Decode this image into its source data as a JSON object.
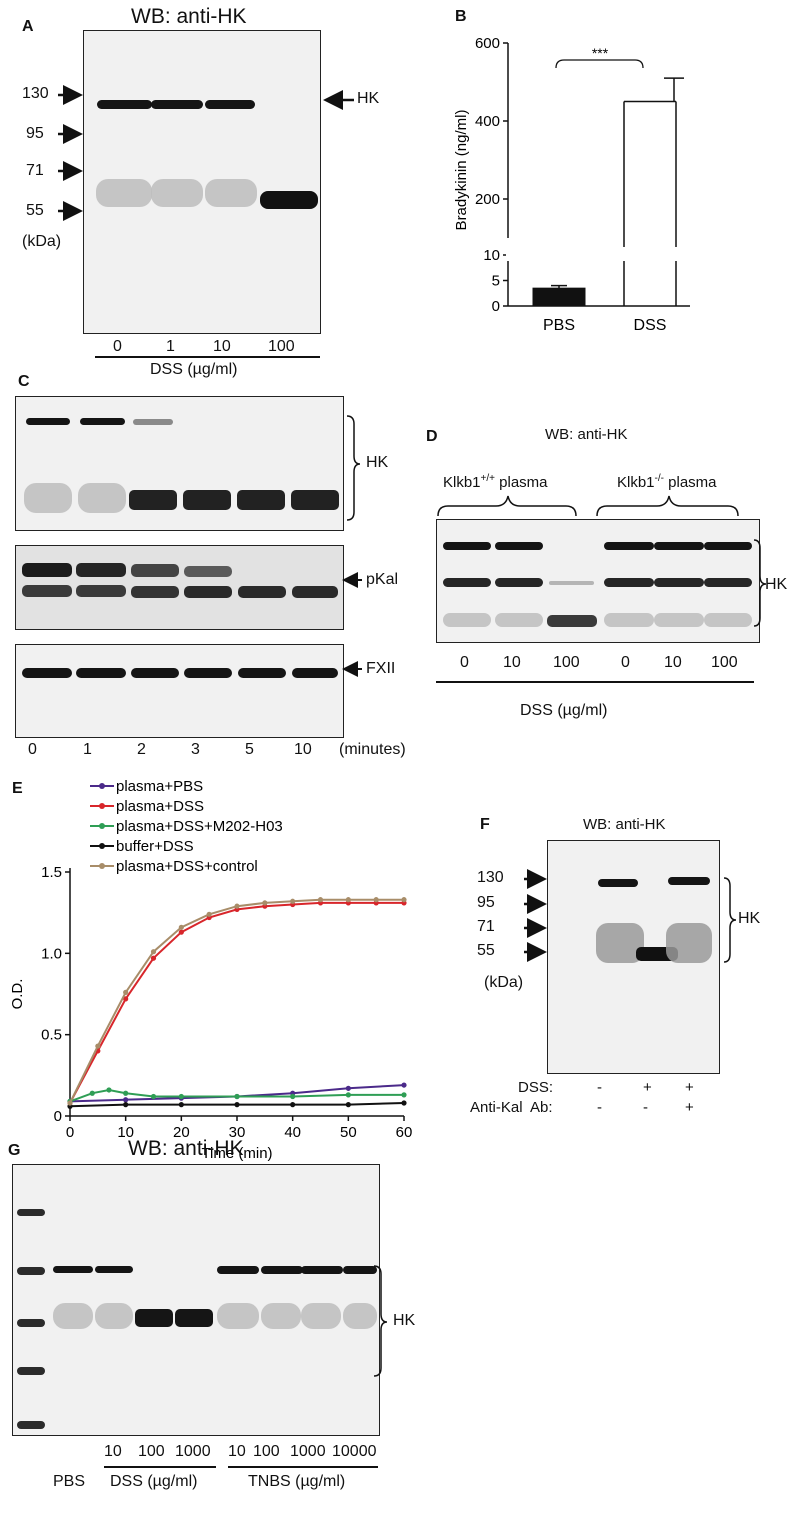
{
  "panelA": {
    "label": "A",
    "title": "WB: anti-HK",
    "markers": [
      "130",
      "95",
      "71",
      "55"
    ],
    "unit": "(kDa)",
    "hk_label": "HK",
    "lanes": [
      "0",
      "1",
      "10",
      "100"
    ],
    "xlabel": "DSS (µg/ml)"
  },
  "panelB": {
    "label": "B",
    "significance": "***",
    "chart_data": {
      "type": "bar",
      "categories": [
        "PBS",
        "DSS"
      ],
      "values": [
        3.5,
        450
      ],
      "errors": [
        0.5,
        60
      ],
      "ylabel": "Bradykinin (ng/ml)",
      "yticks": [
        "0",
        "5",
        "10",
        "200",
        "400",
        "600"
      ],
      "broken_axis": true,
      "colors": [
        "#111111",
        "#ffffff"
      ]
    }
  },
  "panelC": {
    "label": "C",
    "bands": [
      "HK",
      "pKal",
      "FXII"
    ],
    "lanes": [
      "0",
      "1",
      "2",
      "3",
      "5",
      "10"
    ],
    "xunit": "(minutes)"
  },
  "panelD": {
    "label": "D",
    "title": "WB: anti-HK",
    "group1_base": "Klkb1",
    "group1_sup": "+/+",
    "group1_rest": " plasma",
    "group2_base": "Klkb1",
    "group2_sup": "-/-",
    "group2_rest": " plasma",
    "hk_label": "HK",
    "lanes": [
      "0",
      "10",
      "100",
      "0",
      "10",
      "100"
    ],
    "xlabel": "DSS (µg/ml)"
  },
  "panelE": {
    "label": "E",
    "chart_data": {
      "type": "line",
      "xlabel": "Time (min)",
      "ylabel": "O.D.",
      "xticks": [
        "0",
        "10",
        "20",
        "30",
        "40",
        "50",
        "60"
      ],
      "yticks": [
        "0",
        "0.5",
        "1.0",
        "1.5"
      ],
      "xlim": [
        0,
        60
      ],
      "ylim": [
        0,
        1.5
      ],
      "series": [
        {
          "name": "plasma+PBS",
          "color": "#4b2a8a",
          "x": [
            0,
            10,
            20,
            30,
            40,
            50,
            60
          ],
          "values": [
            0.09,
            0.1,
            0.11,
            0.12,
            0.14,
            0.17,
            0.19
          ]
        },
        {
          "name": "plasma+DSS",
          "color": "#d8262b",
          "x": [
            0,
            5,
            10,
            15,
            20,
            25,
            30,
            35,
            40,
            45,
            50,
            55,
            60
          ],
          "values": [
            0.08,
            0.4,
            0.72,
            0.97,
            1.13,
            1.22,
            1.27,
            1.29,
            1.3,
            1.31,
            1.31,
            1.31,
            1.31
          ]
        },
        {
          "name": "plasma+DSS+M202-H03",
          "color": "#2f9e55",
          "x": [
            0,
            4,
            7,
            10,
            15,
            20,
            30,
            40,
            50,
            60
          ],
          "values": [
            0.09,
            0.14,
            0.16,
            0.14,
            0.12,
            0.12,
            0.12,
            0.12,
            0.13,
            0.13
          ]
        },
        {
          "name": "buffer+DSS",
          "color": "#111111",
          "x": [
            0,
            10,
            20,
            30,
            40,
            50,
            60
          ],
          "values": [
            0.06,
            0.07,
            0.07,
            0.07,
            0.07,
            0.07,
            0.08
          ]
        },
        {
          "name": "plasma+DSS+control",
          "color": "#a88d69",
          "x": [
            0,
            5,
            10,
            15,
            20,
            25,
            30,
            35,
            40,
            45,
            50,
            55,
            60
          ],
          "values": [
            0.08,
            0.43,
            0.76,
            1.01,
            1.16,
            1.24,
            1.29,
            1.31,
            1.32,
            1.33,
            1.33,
            1.33,
            1.33
          ]
        }
      ]
    }
  },
  "panelF": {
    "label": "F",
    "title": "WB: anti-HK",
    "markers": [
      "130",
      "95",
      "71",
      "55"
    ],
    "unit": "(kDa)",
    "hk_label": "HK",
    "row1_label": "DSS:",
    "row1_values": [
      "-",
      "+",
      "+"
    ],
    "row2_label": "Anti-Kal  Ab:",
    "row2_values": [
      "-",
      "-",
      "+"
    ]
  },
  "panelG": {
    "label": "G",
    "title": "WB: anti-HK",
    "hk_label": "HK",
    "conc_labels": [
      "10",
      "100",
      "1000",
      "10",
      "100",
      "1000",
      "10000"
    ],
    "pbs": "PBS",
    "dss": "DSS (µg/ml)",
    "tnbs": "TNBS (µg/ml)"
  }
}
